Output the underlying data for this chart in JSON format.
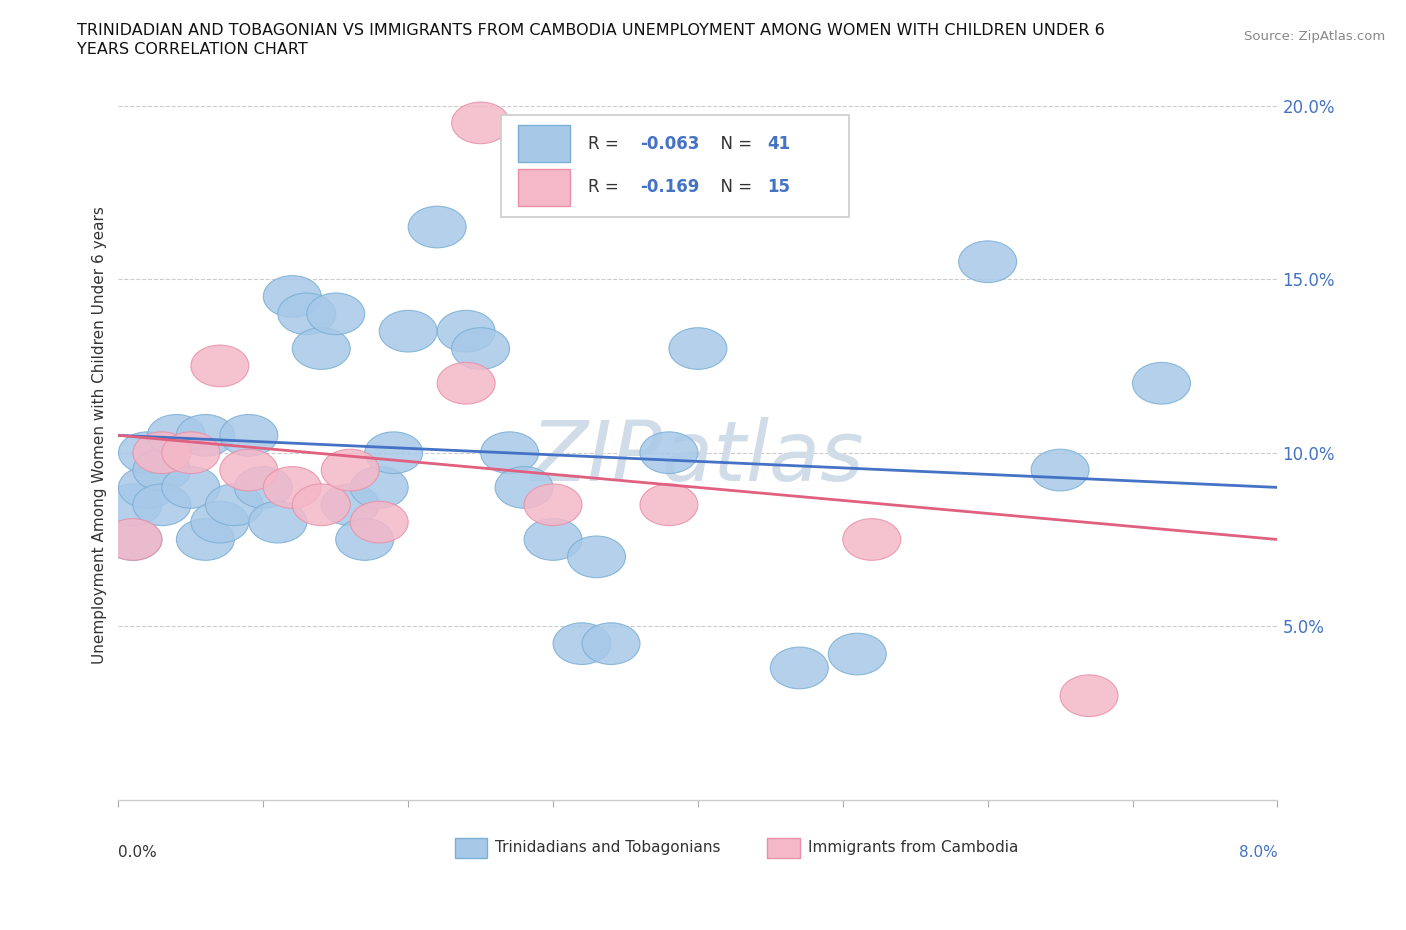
{
  "title_line1": "TRINIDADIAN AND TOBAGONIAN VS IMMIGRANTS FROM CAMBODIA UNEMPLOYMENT AMONG WOMEN WITH CHILDREN UNDER 6",
  "title_line2": "YEARS CORRELATION CHART",
  "source": "Source: ZipAtlas.com",
  "ylabel": "Unemployment Among Women with Children Under 6 years",
  "xmin": 0.0,
  "xmax": 0.08,
  "ymin": 0.0,
  "ymax": 0.21,
  "yticks": [
    0.05,
    0.1,
    0.15,
    0.2
  ],
  "ytick_labels": [
    "5.0%",
    "10.0%",
    "15.0%",
    "20.0%"
  ],
  "blue_color": "#a8c8e8",
  "blue_edge_color": "#7aafd4",
  "pink_color": "#f4b8c8",
  "pink_edge_color": "#e890a8",
  "blue_line_color": "#4472c4",
  "pink_line_color": "#e06080",
  "watermark_color": "#d0dce8",
  "blue_scatter_x": [
    0.001,
    0.001,
    0.002,
    0.002,
    0.003,
    0.003,
    0.004,
    0.005,
    0.006,
    0.006,
    0.007,
    0.008,
    0.009,
    0.01,
    0.011,
    0.012,
    0.013,
    0.014,
    0.015,
    0.016,
    0.017,
    0.018,
    0.019,
    0.02,
    0.022,
    0.024,
    0.025,
    0.027,
    0.028,
    0.03,
    0.032,
    0.033,
    0.034,
    0.038,
    0.04,
    0.041,
    0.047,
    0.051,
    0.06,
    0.065,
    0.072
  ],
  "blue_scatter_y": [
    0.075,
    0.085,
    0.09,
    0.1,
    0.095,
    0.085,
    0.105,
    0.09,
    0.105,
    0.075,
    0.08,
    0.085,
    0.105,
    0.09,
    0.08,
    0.145,
    0.14,
    0.13,
    0.14,
    0.085,
    0.075,
    0.09,
    0.1,
    0.135,
    0.165,
    0.135,
    0.13,
    0.1,
    0.09,
    0.075,
    0.045,
    0.07,
    0.045,
    0.1,
    0.13,
    0.18,
    0.038,
    0.042,
    0.155,
    0.095,
    0.12
  ],
  "pink_scatter_x": [
    0.001,
    0.003,
    0.005,
    0.007,
    0.009,
    0.012,
    0.014,
    0.016,
    0.018,
    0.024,
    0.025,
    0.03,
    0.038,
    0.052,
    0.067
  ],
  "pink_scatter_y": [
    0.075,
    0.1,
    0.1,
    0.125,
    0.095,
    0.09,
    0.085,
    0.095,
    0.08,
    0.12,
    0.195,
    0.085,
    0.085,
    0.075,
    0.03
  ],
  "legend_text_1_r": "-0.063",
  "legend_text_1_n": "41",
  "legend_text_2_r": "-0.169",
  "legend_text_2_n": "15"
}
